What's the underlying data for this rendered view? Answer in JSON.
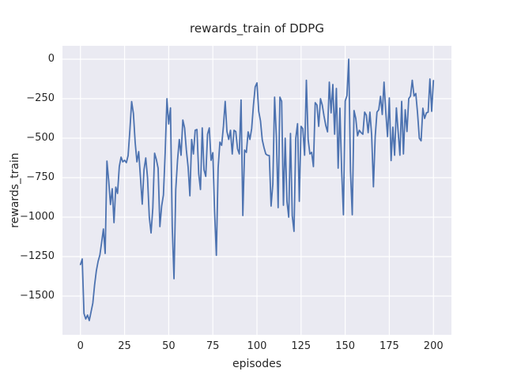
{
  "chart_data": {
    "type": "line",
    "title": "rewards_train of DDPG",
    "xlabel": "episodes",
    "ylabel": "rewards_train",
    "grid": true,
    "legend": false,
    "xlim": [
      -10.2,
      210.2
    ],
    "ylim": [
      -1745,
      85
    ],
    "xticks": {
      "values": [
        0,
        25,
        50,
        75,
        100,
        125,
        150,
        175,
        200
      ],
      "labels": [
        "0",
        "25",
        "50",
        "75",
        "100",
        "125",
        "150",
        "175",
        "200"
      ]
    },
    "yticks": {
      "values": [
        0,
        -250,
        -500,
        -750,
        -1000,
        -1250,
        -1500
      ],
      "labels": [
        "0",
        "−250",
        "−500",
        "−750",
        "−1000",
        "−1250",
        "−1500"
      ]
    },
    "style": {
      "axes_bg": "#eaeaf2",
      "grid_color": "#ffffff",
      "line_color": "#4c72b0",
      "text_color": "#262626",
      "line_width": 1.8
    },
    "series": [
      {
        "name": "rewards_train",
        "color": "#4c72b0",
        "x_start": 0,
        "x_step": 1,
        "values": [
          -1300,
          -1265,
          -1610,
          -1645,
          -1620,
          -1655,
          -1600,
          -1545,
          -1430,
          -1340,
          -1280,
          -1240,
          -1160,
          -1075,
          -1230,
          -645,
          -770,
          -920,
          -820,
          -1035,
          -810,
          -850,
          -680,
          -620,
          -650,
          -640,
          -655,
          -610,
          -450,
          -268,
          -343,
          -527,
          -650,
          -585,
          -750,
          -918,
          -700,
          -625,
          -750,
          -1000,
          -1100,
          -942,
          -595,
          -635,
          -690,
          -1060,
          -930,
          -860,
          -590,
          -250,
          -410,
          -308,
          -1058,
          -1390,
          -825,
          -640,
          -508,
          -608,
          -385,
          -435,
          -575,
          -683,
          -865,
          -508,
          -600,
          -450,
          -445,
          -725,
          -825,
          -435,
          -700,
          -742,
          -475,
          -435,
          -640,
          -592,
          -967,
          -1242,
          -690,
          -525,
          -545,
          -425,
          -267,
          -458,
          -508,
          -450,
          -600,
          -450,
          -458,
          -567,
          -600,
          -258,
          -990,
          -575,
          -590,
          -460,
          -508,
          -440,
          -292,
          -175,
          -150,
          -330,
          -390,
          -510,
          -560,
          -600,
          -608,
          -610,
          -930,
          -790,
          -240,
          -490,
          -940,
          -240,
          -267,
          -925,
          -500,
          -900,
          -1000,
          -470,
          -992,
          -1090,
          -500,
          -408,
          -900,
          -425,
          -440,
          -608,
          -133,
          -508,
          -600,
          -590,
          -680,
          -275,
          -290,
          -425,
          -250,
          -290,
          -360,
          -420,
          -460,
          -145,
          -340,
          -160,
          -475,
          -185,
          -690,
          -310,
          -710,
          -985,
          -265,
          -230,
          0,
          -710,
          -985,
          -325,
          -375,
          -485,
          -450,
          -465,
          -475,
          -335,
          -355,
          -465,
          -335,
          -483,
          -808,
          -490,
          -335,
          -320,
          -235,
          -350,
          -145,
          -335,
          -490,
          -245,
          -642,
          -430,
          -608,
          -308,
          -460,
          -608,
          -267,
          -600,
          -320,
          -458,
          -250,
          -233,
          -133,
          -233,
          -217,
          -342,
          -500,
          -517,
          -310,
          -375,
          -340,
          -335,
          -125,
          -330,
          -135
        ]
      }
    ]
  }
}
